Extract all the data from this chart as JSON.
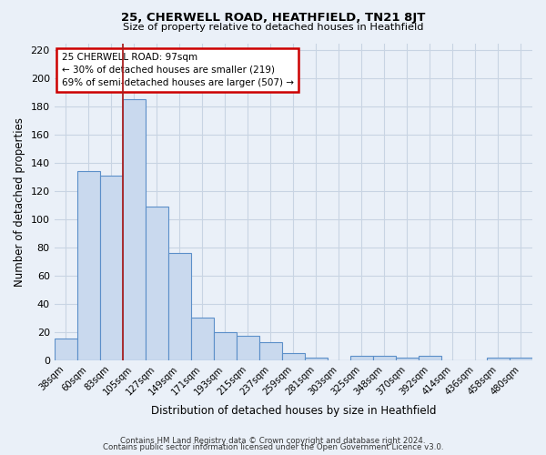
{
  "title": "25, CHERWELL ROAD, HEATHFIELD, TN21 8JT",
  "subtitle": "Size of property relative to detached houses in Heathfield",
  "xlabel": "Distribution of detached houses by size in Heathfield",
  "ylabel": "Number of detached properties",
  "bar_labels": [
    "38sqm",
    "60sqm",
    "83sqm",
    "105sqm",
    "127sqm",
    "149sqm",
    "171sqm",
    "193sqm",
    "215sqm",
    "237sqm",
    "259sqm",
    "281sqm",
    "303sqm",
    "325sqm",
    "348sqm",
    "370sqm",
    "392sqm",
    "414sqm",
    "436sqm",
    "458sqm",
    "480sqm"
  ],
  "bar_values": [
    15,
    134,
    131,
    185,
    109,
    76,
    30,
    20,
    17,
    13,
    5,
    2,
    0,
    3,
    3,
    2,
    3,
    0,
    0,
    2,
    2
  ],
  "bar_color": "#c9d9ee",
  "bar_edge_color": "#5b8fc9",
  "grid_color": "#c8d4e3",
  "bg_color": "#eaf0f8",
  "vline_color": "#aa2020",
  "vline_index": 3,
  "annotation_title": "25 CHERWELL ROAD: 97sqm",
  "annotation_line1": "← 30% of detached houses are smaller (219)",
  "annotation_line2": "69% of semi-detached houses are larger (507) →",
  "annotation_box_facecolor": "#ffffff",
  "annotation_box_edgecolor": "#cc0000",
  "ylim": [
    0,
    225
  ],
  "yticks": [
    0,
    20,
    40,
    60,
    80,
    100,
    120,
    140,
    160,
    180,
    200,
    220
  ],
  "footer1": "Contains HM Land Registry data © Crown copyright and database right 2024.",
  "footer2": "Contains public sector information licensed under the Open Government Licence v3.0."
}
